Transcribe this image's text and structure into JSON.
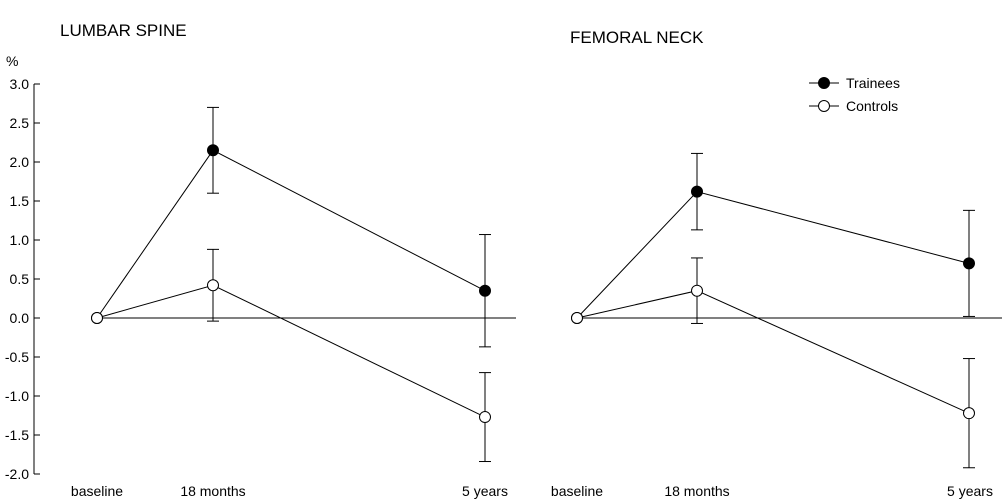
{
  "chart_data": [
    {
      "type": "line",
      "title": "LUMBAR SPINE",
      "ylabel": "%",
      "categories": [
        "baseline",
        "18 months",
        "5 years"
      ],
      "x": [
        0,
        18,
        60
      ],
      "ylim": [
        -2.0,
        3.0
      ],
      "yticks": [
        "3.0",
        "2.5",
        "2.0",
        "1.5",
        "1.0",
        "0.5",
        "0.0",
        "-0.5",
        "-1.0",
        "-1.5",
        "-2.0"
      ],
      "series": [
        {
          "name": "Trainees",
          "marker": "filled",
          "values": [
            0,
            2.15,
            0.35
          ],
          "errors": [
            0,
            0.55,
            0.72
          ]
        },
        {
          "name": "Controls",
          "marker": "open",
          "values": [
            0,
            0.42,
            -1.27
          ],
          "errors": [
            0,
            0.46,
            0.57
          ]
        }
      ]
    },
    {
      "type": "line",
      "title": "FEMORAL NECK",
      "categories": [
        "baseline",
        "18 months",
        "5 years"
      ],
      "x": [
        0,
        18,
        60
      ],
      "ylim": [
        -2.0,
        3.0
      ],
      "series": [
        {
          "name": "Trainees",
          "marker": "filled",
          "values": [
            0,
            1.62,
            0.7
          ],
          "errors": [
            0,
            0.49,
            0.68
          ]
        },
        {
          "name": "Controls",
          "marker": "open",
          "values": [
            0,
            0.35,
            -1.22
          ],
          "errors": [
            0,
            0.42,
            0.7
          ]
        }
      ],
      "legend": {
        "position": "top-right",
        "entries": [
          {
            "label": "Trainees",
            "marker": "filled"
          },
          {
            "label": "Controls",
            "marker": "open"
          }
        ]
      }
    }
  ]
}
